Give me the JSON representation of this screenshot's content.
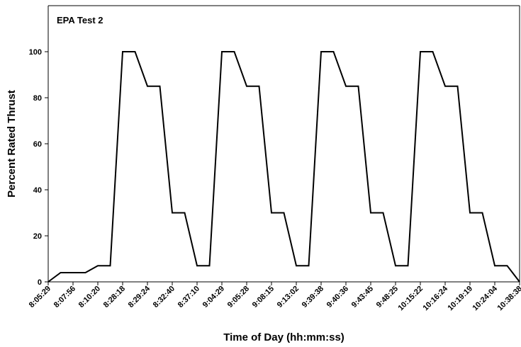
{
  "chart_data": {
    "type": "line",
    "title": "EPA Test 2",
    "xlabel": "Time of Day (hh:mm:ss)",
    "ylabel": "Percent Rated Thrust",
    "ylim": [
      0,
      120
    ],
    "yticks": [
      0,
      20,
      40,
      60,
      80,
      100
    ],
    "grid": false,
    "categories": [
      "8:05:29",
      "8:07:56",
      "8:10:20",
      "8:28:18",
      "8:29:24",
      "8:32:40",
      "8:37:10",
      "9:04:29",
      "9:05:28",
      "9:08:15",
      "9:13:02",
      "9:39:38",
      "9:40:36",
      "9:43:45",
      "9:48:25",
      "10:15:22",
      "10:16:24",
      "10:19:19",
      "10:24:04",
      "10:38:38"
    ],
    "series": [
      {
        "color": "#000000",
        "x": [
          0,
          0.5,
          1,
          1.5,
          2,
          2.5,
          3,
          3.5,
          4,
          4.5,
          5,
          5.5,
          6,
          6.5,
          7,
          7.5,
          8,
          8.5,
          9,
          9.5,
          10,
          10.5,
          11,
          11.5,
          12,
          12.5,
          13,
          13.5,
          14,
          14.5,
          15,
          15.5,
          16,
          16.5,
          17,
          17.5,
          18,
          18.5,
          19
        ],
        "y": [
          0,
          4,
          4,
          4,
          7,
          7,
          100,
          100,
          85,
          85,
          30,
          30,
          7,
          7,
          100,
          100,
          85,
          85,
          30,
          30,
          7,
          7,
          100,
          100,
          85,
          85,
          30,
          30,
          7,
          7,
          100,
          100,
          85,
          85,
          30,
          30,
          7,
          7,
          0
        ]
      }
    ]
  }
}
